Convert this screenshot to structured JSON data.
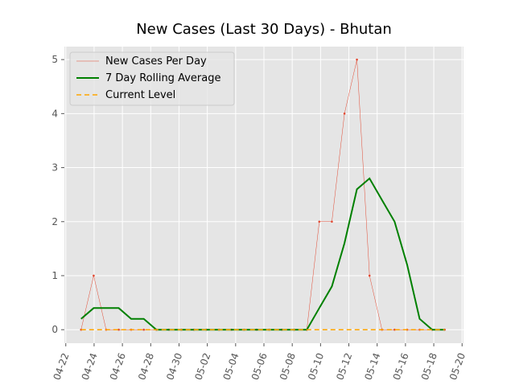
{
  "chart_data": {
    "type": "line",
    "title": "New Cases (Last 30 Days) - Bhutan",
    "x": [
      1.08,
      1.97,
      2.85,
      3.74,
      4.62,
      5.51,
      6.4,
      7.28,
      8.17,
      9.05,
      9.94,
      10.83,
      11.71,
      12.6,
      13.48,
      14.37,
      15.26,
      16.14,
      17.03,
      17.91,
      18.8,
      19.69,
      20.57,
      21.46,
      22.34,
      23.23,
      24.12,
      25.0,
      25.89,
      26.77
    ],
    "series": [
      {
        "name": "New Cases Per Day",
        "color": "#e24a33",
        "linewidth": 0.5,
        "linestyle": "solid",
        "marker": true,
        "values": [
          0,
          1,
          0,
          0,
          0,
          0,
          0,
          0,
          0,
          0,
          0,
          0,
          0,
          0,
          0,
          0,
          0,
          0,
          0,
          2,
          2,
          4,
          5,
          1,
          0,
          0,
          0,
          0,
          0,
          0
        ]
      },
      {
        "name": "7 Day Rolling Average",
        "color": "#008000",
        "linewidth": 2,
        "linestyle": "solid",
        "marker": false,
        "values": [
          0.2,
          0.4,
          0.4,
          0.4,
          0.2,
          0.2,
          0,
          0,
          0,
          0,
          0,
          0,
          0,
          0,
          0,
          0,
          0,
          0,
          0,
          0.4,
          0.8,
          1.6,
          2.6,
          2.8,
          2.4,
          2.0,
          1.2,
          0.2,
          0,
          0
        ]
      },
      {
        "name": "Current Level",
        "color": "#ffa500",
        "linewidth": 1.5,
        "linestyle": "dashed",
        "marker": false,
        "values": [
          0,
          0,
          0,
          0,
          0,
          0,
          0,
          0,
          0,
          0,
          0,
          0,
          0,
          0,
          0,
          0,
          0,
          0,
          0,
          0,
          0,
          0,
          0,
          0,
          0,
          0,
          0,
          0,
          0,
          0
        ]
      }
    ],
    "xlim": [
      -0.1,
      28.1
    ],
    "xticks": [
      {
        "value": 0,
        "label": "04-22"
      },
      {
        "value": 2,
        "label": "04-24"
      },
      {
        "value": 4,
        "label": "04-26"
      },
      {
        "value": 6,
        "label": "04-28"
      },
      {
        "value": 8,
        "label": "04-30"
      },
      {
        "value": 10,
        "label": "05-02"
      },
      {
        "value": 12,
        "label": "05-04"
      },
      {
        "value": 14,
        "label": "05-06"
      },
      {
        "value": 16,
        "label": "05-08"
      },
      {
        "value": 18,
        "label": "05-10"
      },
      {
        "value": 20,
        "label": "05-12"
      },
      {
        "value": 22,
        "label": "05-14"
      },
      {
        "value": 24,
        "label": "05-16"
      },
      {
        "value": 26,
        "label": "05-18"
      },
      {
        "value": 28,
        "label": "05-20"
      }
    ],
    "ylim": [
      -0.25,
      5.24
    ],
    "yticks": [
      0,
      1,
      2,
      3,
      4,
      5
    ],
    "grid": true,
    "legend": "upper left"
  }
}
